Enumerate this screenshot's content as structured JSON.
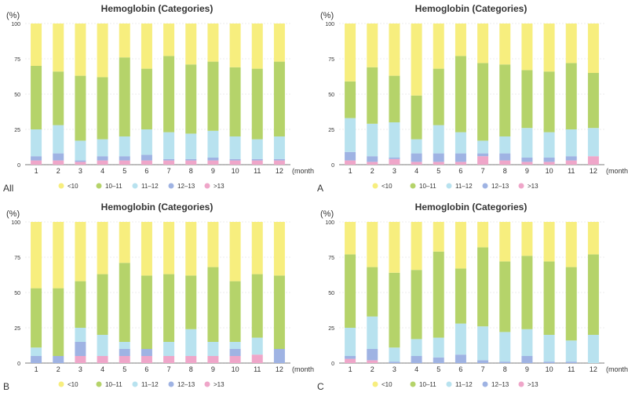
{
  "colors": {
    "lt10": "#f7ee7e",
    "10-11": "#b5d36a",
    "11-12": "#b8e2ef",
    "12-13": "#9fb3e3",
    "gt13": "#efa6c9",
    "grid": "#d9d9d9",
    "axis": "#555555",
    "text": "#333333"
  },
  "chart_data": [
    {
      "type": "bar",
      "stacked": true,
      "panel_label": "All",
      "title": "Hemoglobin (Categories)",
      "ylabel": "(%)",
      "xlabel": "(months)",
      "ylim": [
        0,
        100
      ],
      "yticks": [
        "0",
        "25",
        "50",
        "75",
        "100"
      ],
      "categories": [
        "1",
        "2",
        "3",
        "4",
        "5",
        "6",
        "7",
        "8",
        "9",
        "10",
        "11",
        "12"
      ],
      "legend": [
        "<10",
        "10–11",
        "11–12",
        "12–13",
        ">13"
      ],
      "series": [
        {
          "name": ">13",
          "values": [
            3,
            3,
            2,
            3,
            3,
            3,
            3,
            3,
            3,
            3,
            3,
            3
          ]
        },
        {
          "name": "12–13",
          "values": [
            3,
            5,
            1,
            3,
            3,
            4,
            1,
            1,
            2,
            1,
            1,
            1
          ]
        },
        {
          "name": "11–12",
          "values": [
            19,
            20,
            14,
            12,
            14,
            18,
            19,
            18,
            19,
            16,
            14,
            16
          ]
        },
        {
          "name": "10–11",
          "values": [
            45,
            38,
            46,
            44,
            56,
            43,
            54,
            49,
            49,
            49,
            50,
            53
          ]
        },
        {
          "name": "<10",
          "values": [
            30,
            34,
            37,
            38,
            24,
            32,
            23,
            29,
            27,
            31,
            32,
            27
          ]
        }
      ]
    },
    {
      "type": "bar",
      "stacked": true,
      "panel_label": "A",
      "title": "Hemoglobin (Categories)",
      "ylabel": "(%)",
      "xlabel": "(months)",
      "ylim": [
        0,
        100
      ],
      "yticks": [
        "0",
        "25",
        "50",
        "75",
        "100"
      ],
      "categories": [
        "1",
        "2",
        "3",
        "4",
        "5",
        "6",
        "7",
        "8",
        "9",
        "10",
        "11",
        "12"
      ],
      "legend": [
        "<10",
        "10–11",
        "11–12",
        "12–13",
        ">13"
      ],
      "series": [
        {
          "name": ">13",
          "values": [
            3,
            2,
            4,
            2,
            2,
            2,
            6,
            3,
            2,
            2,
            3,
            6
          ]
        },
        {
          "name": "12–13",
          "values": [
            6,
            4,
            1,
            6,
            6,
            6,
            2,
            5,
            3,
            3,
            3,
            0
          ]
        },
        {
          "name": "11–12",
          "values": [
            24,
            23,
            25,
            10,
            20,
            15,
            9,
            12,
            21,
            18,
            19,
            20
          ]
        },
        {
          "name": "10–11",
          "values": [
            26,
            40,
            33,
            31,
            40,
            54,
            55,
            51,
            41,
            43,
            47,
            39
          ]
        },
        {
          "name": "<10",
          "values": [
            41,
            31,
            37,
            51,
            32,
            23,
            28,
            29,
            33,
            34,
            28,
            35
          ]
        }
      ]
    },
    {
      "type": "bar",
      "stacked": true,
      "panel_label": "B",
      "title": "Hemoglobin (Categories)",
      "ylabel": "(%)",
      "xlabel": "(months)",
      "ylim": [
        0,
        100
      ],
      "yticks": [
        "0",
        "25",
        "50",
        "75",
        "100"
      ],
      "categories": [
        "1",
        "2",
        "3",
        "4",
        "5",
        "6",
        "7",
        "8",
        "9",
        "10",
        "11",
        "12"
      ],
      "legend": [
        "<10",
        "10–11",
        "11–12",
        "12–13",
        ">13"
      ],
      "series": [
        {
          "name": ">13",
          "values": [
            0,
            0,
            5,
            5,
            5,
            5,
            5,
            5,
            5,
            5,
            6,
            0
          ]
        },
        {
          "name": "12–13",
          "values": [
            5,
            5,
            10,
            0,
            5,
            5,
            0,
            0,
            0,
            5,
            0,
            10
          ]
        },
        {
          "name": "11–12",
          "values": [
            6,
            0,
            10,
            15,
            5,
            0,
            10,
            19,
            10,
            5,
            12,
            0
          ]
        },
        {
          "name": "10–11",
          "values": [
            42,
            48,
            33,
            43,
            56,
            52,
            48,
            38,
            53,
            43,
            45,
            52
          ]
        },
        {
          "name": "<10",
          "values": [
            47,
            47,
            42,
            37,
            29,
            38,
            37,
            38,
            32,
            42,
            37,
            38
          ]
        }
      ]
    },
    {
      "type": "bar",
      "stacked": true,
      "panel_label": "C",
      "title": "Hemoglobin (Categories)",
      "ylabel": "(%)",
      "xlabel": "(months)",
      "ylim": [
        0,
        100
      ],
      "yticks": [
        "0",
        "25",
        "50",
        "75",
        "100"
      ],
      "categories": [
        "1",
        "2",
        "3",
        "4",
        "5",
        "6",
        "7",
        "8",
        "9",
        "10",
        "11",
        "12"
      ],
      "legend": [
        "<10",
        "10–11",
        "11–12",
        "12–13",
        ">13"
      ],
      "series": [
        {
          "name": ">13",
          "values": [
            3,
            2,
            0,
            0,
            0,
            0,
            0,
            0,
            0,
            0,
            0,
            0
          ]
        },
        {
          "name": "12–13",
          "values": [
            2,
            8,
            1,
            5,
            4,
            6,
            2,
            1,
            5,
            1,
            1,
            0
          ]
        },
        {
          "name": "11–12",
          "values": [
            20,
            23,
            10,
            12,
            14,
            22,
            24,
            21,
            19,
            19,
            15,
            20
          ]
        },
        {
          "name": "10–11",
          "values": [
            52,
            35,
            53,
            49,
            61,
            39,
            56,
            50,
            52,
            52,
            52,
            57
          ]
        },
        {
          "name": "<10",
          "values": [
            23,
            32,
            36,
            34,
            21,
            33,
            18,
            28,
            24,
            28,
            32,
            23
          ]
        }
      ]
    }
  ]
}
